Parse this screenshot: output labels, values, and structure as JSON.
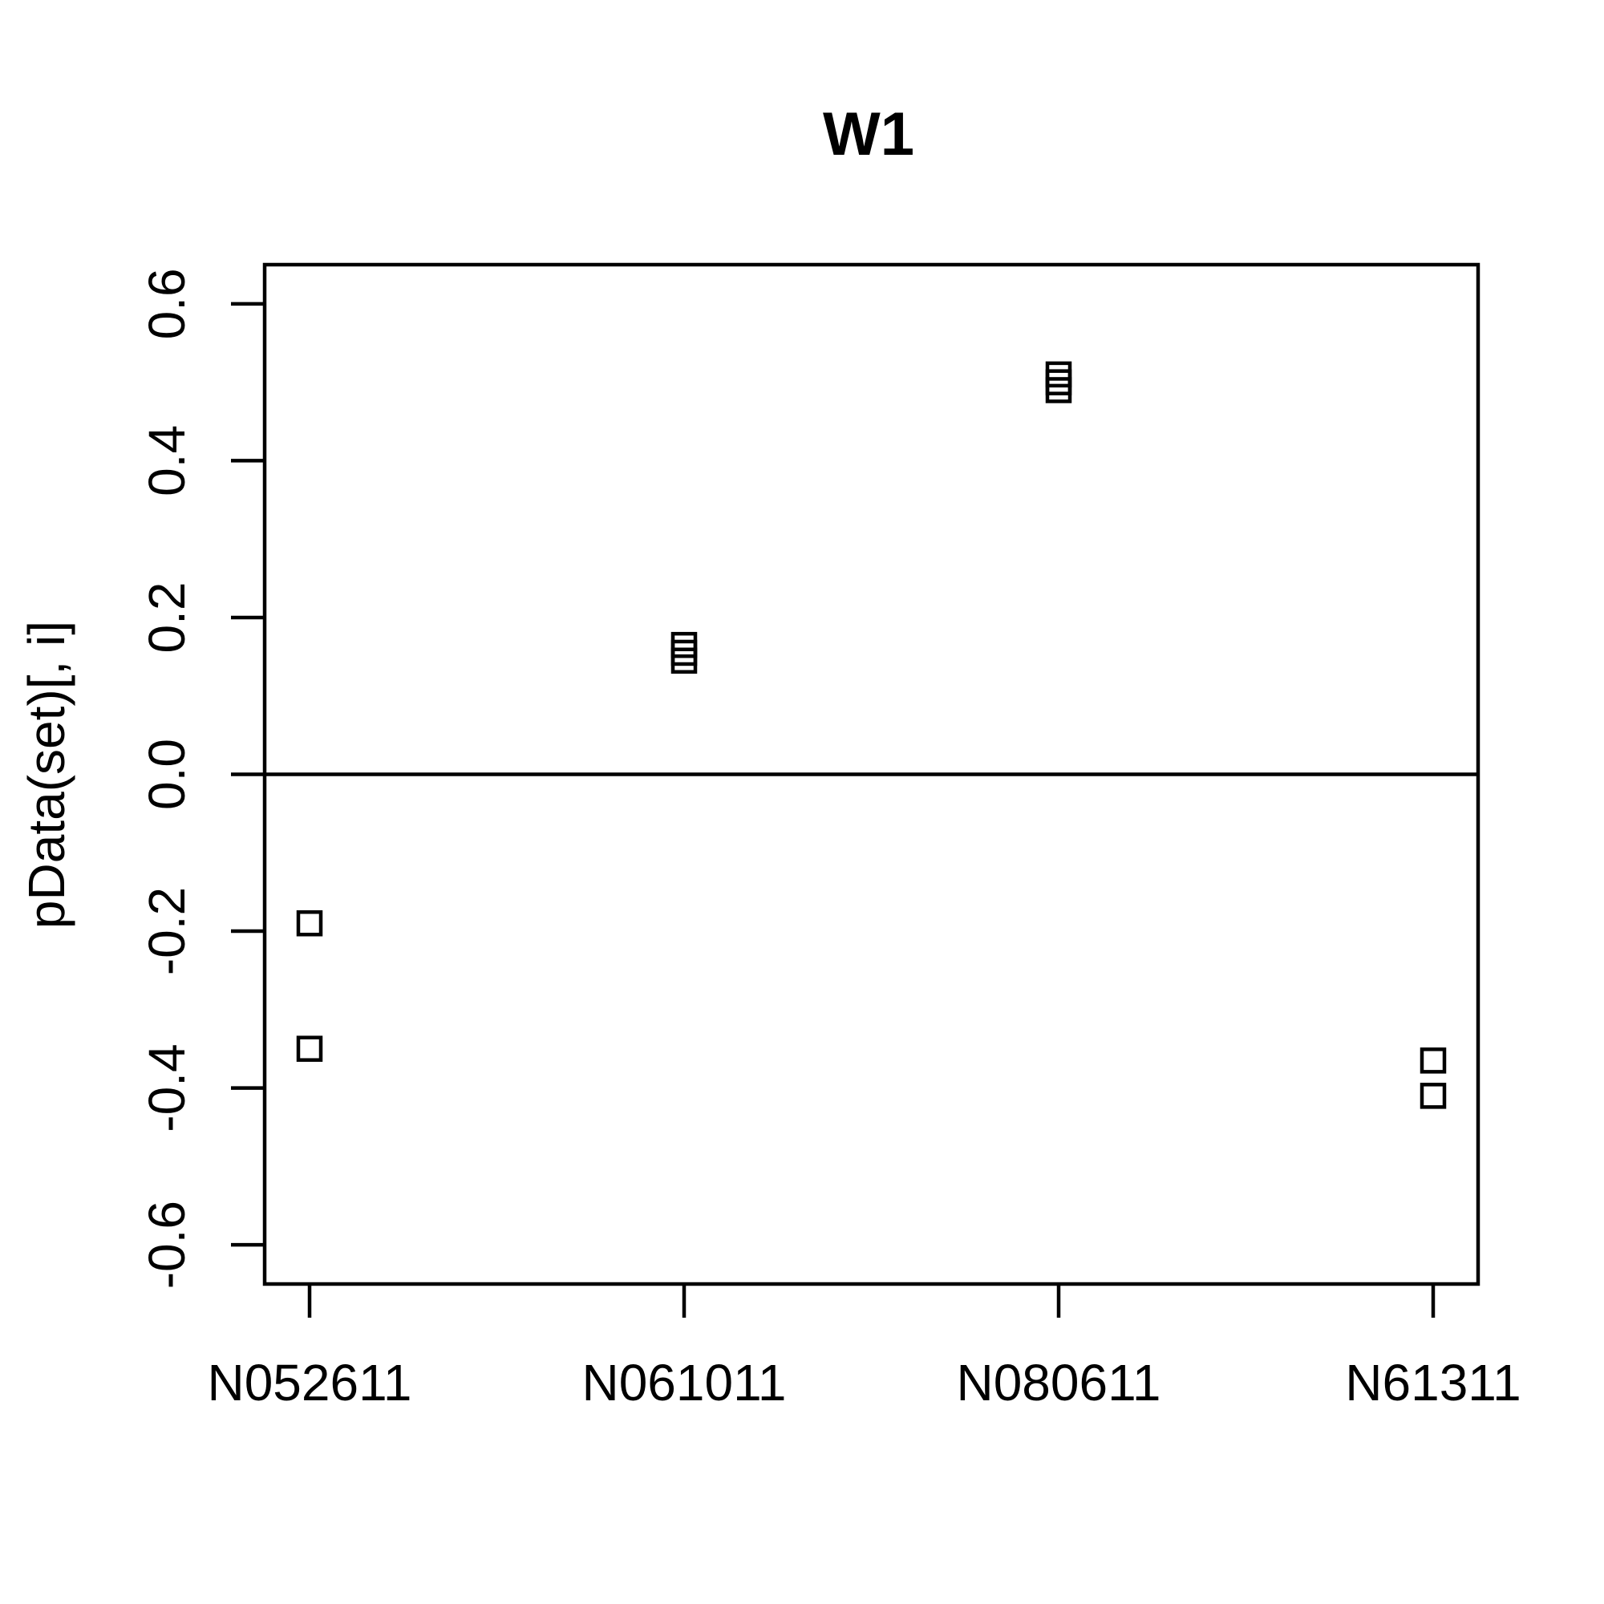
{
  "chart_data": {
    "type": "scatter",
    "title": "W1",
    "xlabel": "",
    "ylabel": "pData(set)[, i]",
    "categories": [
      "N052611",
      "N061011",
      "N080611",
      "N61311"
    ],
    "yticks": [
      "-0.6",
      "-0.4",
      "-0.2",
      "0.0",
      "0.2",
      "0.4",
      "0.6"
    ],
    "ylim": [
      -0.65,
      0.65
    ],
    "reference_line_y": 0.0,
    "marker": "open-square",
    "points": [
      {
        "category": "N052611",
        "y": -0.19
      },
      {
        "category": "N052611",
        "y": -0.35
      },
      {
        "category": "N061011",
        "y": 0.165
      },
      {
        "category": "N061011",
        "y": 0.155
      },
      {
        "category": "N061011",
        "y": 0.145
      },
      {
        "category": "N080611",
        "y": 0.51
      },
      {
        "category": "N080611",
        "y": 0.5
      },
      {
        "category": "N080611",
        "y": 0.49
      },
      {
        "category": "N61311",
        "y": -0.365
      },
      {
        "category": "N61311",
        "y": -0.41
      }
    ],
    "grid": false,
    "legend": "none"
  }
}
